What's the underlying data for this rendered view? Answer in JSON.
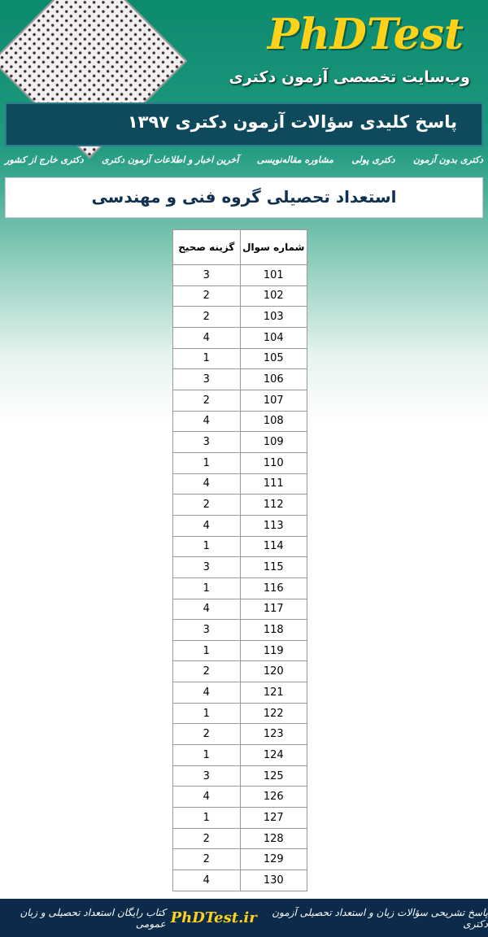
{
  "header": {
    "logo": "PhDTest",
    "subtitle": "وب‌سایت تخصصی آزمون دکتری",
    "banner": "پاسخ کلیدی سؤالات آزمون دکتری ۱۳۹۷"
  },
  "nav": [
    "دکتری بدون آزمون",
    "دکتری پولی",
    "مشاوره مقاله‌نویسی",
    "آخرین اخبار و اطلاعات آزمون دکتری",
    "دکتری خارج از کشور"
  ],
  "section_title": "استعداد تحصیلی گروه فنی و مهندسی",
  "table": {
    "header": [
      "شماره سوال",
      "گزینه صحیح"
    ],
    "rows": [
      [
        101,
        3
      ],
      [
        102,
        2
      ],
      [
        103,
        2
      ],
      [
        104,
        4
      ],
      [
        105,
        1
      ],
      [
        106,
        3
      ],
      [
        107,
        2
      ],
      [
        108,
        4
      ],
      [
        109,
        3
      ],
      [
        110,
        1
      ],
      [
        111,
        4
      ],
      [
        112,
        2
      ],
      [
        113,
        4
      ],
      [
        114,
        1
      ],
      [
        115,
        3
      ],
      [
        116,
        1
      ],
      [
        117,
        4
      ],
      [
        118,
        3
      ],
      [
        119,
        1
      ],
      [
        120,
        2
      ],
      [
        121,
        4
      ],
      [
        122,
        1
      ],
      [
        123,
        2
      ],
      [
        124,
        1
      ],
      [
        125,
        3
      ],
      [
        126,
        4
      ],
      [
        127,
        1
      ],
      [
        128,
        2
      ],
      [
        129,
        2
      ],
      [
        130,
        4
      ]
    ]
  },
  "footer": {
    "left_text": "پاسخ تشریحی سؤالات زبان و استعداد تحصیلی آزمون دکتری",
    "site": "PhDTest.ir",
    "right_text": "کتاب رایگان استعداد تحصیلی و زبان عمومی"
  }
}
